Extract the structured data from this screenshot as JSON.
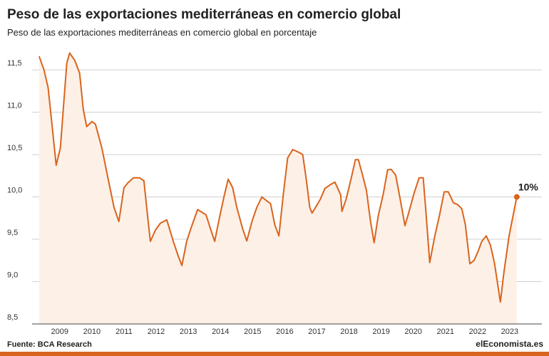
{
  "chart_data": {
    "type": "area",
    "title": "Peso de las exportaciones mediterráneas en comercio global",
    "subtitle": "Peso de las exportaciones mediterráneas en comercio global en porcentaje",
    "source": "Fuente: BCA Research",
    "logo": "elEconomista.es",
    "color": "#d9641e",
    "fill_color": "#fdf0e6",
    "grid": true,
    "x": [
      2008.36,
      2008.51,
      2008.64,
      2008.73,
      2008.89,
      2009.02,
      2009.13,
      2009.22,
      2009.31,
      2009.47,
      2009.62,
      2009.73,
      2009.84,
      2010.0,
      2010.11,
      2010.31,
      2010.53,
      2010.69,
      2010.84,
      2011.0,
      2011.13,
      2011.29,
      2011.49,
      2011.62,
      2011.73,
      2011.82,
      2011.98,
      2012.13,
      2012.33,
      2012.53,
      2012.67,
      2012.8,
      2012.95,
      2013.09,
      2013.29,
      2013.55,
      2013.69,
      2013.82,
      2013.98,
      2014.11,
      2014.24,
      2014.38,
      2014.51,
      2014.69,
      2014.82,
      2014.98,
      2015.13,
      2015.29,
      2015.42,
      2015.56,
      2015.69,
      2015.82,
      2015.96,
      2016.09,
      2016.25,
      2016.42,
      2016.56,
      2016.67,
      2016.78,
      2016.85,
      2016.98,
      2017.11,
      2017.25,
      2017.4,
      2017.56,
      2017.74,
      2017.78,
      2017.91,
      2018.07,
      2018.2,
      2018.29,
      2018.4,
      2018.54,
      2018.67,
      2018.78,
      2018.91,
      2019.07,
      2019.2,
      2019.31,
      2019.45,
      2019.58,
      2019.74,
      2019.87,
      2020.02,
      2020.18,
      2020.31,
      2020.4,
      2020.51,
      2020.67,
      2020.82,
      2020.96,
      2021.09,
      2021.25,
      2021.38,
      2021.51,
      2021.62,
      2021.76,
      2021.89,
      2022.02,
      2022.13,
      2022.27,
      2022.4,
      2022.53,
      2022.71,
      2022.82,
      2022.98,
      2023.22
    ],
    "values": [
      11.66,
      11.5,
      11.29,
      10.96,
      10.375,
      10.58,
      11.13,
      11.58,
      11.7,
      11.61,
      11.46,
      11.04,
      10.83,
      10.89,
      10.86,
      10.58,
      10.17,
      9.875,
      9.71,
      10.11,
      10.17,
      10.225,
      10.225,
      10.19,
      9.79,
      9.475,
      9.61,
      9.69,
      9.73,
      9.48,
      9.32,
      9.19,
      9.475,
      9.64,
      9.85,
      9.79,
      9.625,
      9.475,
      9.775,
      10.0,
      10.21,
      10.11,
      9.875,
      9.625,
      9.48,
      9.71,
      9.875,
      10.0,
      9.96,
      9.92,
      9.67,
      9.54,
      10.04,
      10.46,
      10.56,
      10.53,
      10.5,
      10.21,
      9.875,
      9.81,
      9.89,
      9.975,
      10.1,
      10.14,
      10.175,
      10.025,
      9.83,
      9.975,
      10.225,
      10.44,
      10.44,
      10.29,
      10.08,
      9.71,
      9.46,
      9.775,
      10.04,
      10.32,
      10.325,
      10.26,
      10.0,
      9.66,
      9.83,
      10.04,
      10.225,
      10.225,
      9.79,
      9.225,
      9.54,
      9.79,
      10.06,
      10.06,
      9.93,
      9.91,
      9.86,
      9.67,
      9.21,
      9.25,
      9.36,
      9.475,
      9.54,
      9.43,
      9.21,
      8.76,
      9.11,
      9.54,
      10.0
    ],
    "value_labels": [
      null,
      null,
      null,
      null,
      null,
      null,
      null,
      null,
      null,
      null,
      null,
      null,
      null,
      null,
      null,
      null,
      null,
      null,
      null,
      null,
      null,
      null,
      null,
      null,
      null,
      null,
      null,
      null,
      null,
      null,
      null,
      null,
      null,
      null,
      null,
      null,
      null,
      null,
      null,
      null,
      null,
      null,
      null,
      null,
      null,
      null,
      null,
      null,
      null,
      null,
      null,
      null,
      null,
      null,
      null,
      null,
      null,
      null,
      null,
      null,
      null,
      null,
      null,
      null,
      null,
      null,
      null,
      null,
      null,
      null,
      null,
      null,
      null,
      null,
      null,
      null,
      null,
      null,
      null,
      null,
      null,
      null,
      null,
      null,
      null,
      null,
      null,
      null,
      null,
      null,
      null,
      null,
      null,
      null,
      null,
      null,
      null,
      null,
      null,
      null,
      null,
      null,
      null,
      null,
      null,
      null,
      "10%"
    ],
    "xlim": [
      2008.14,
      2024.0
    ],
    "xticks": [
      2009,
      2010,
      2011,
      2012,
      2013,
      2014,
      2015,
      2016,
      2017,
      2018,
      2019,
      2020,
      2021,
      2022,
      2023
    ],
    "ylim": [
      8.5,
      11.72
    ],
    "yticks": [
      {
        "value": 11.5,
        "label": "11,5"
      },
      {
        "value": 11.0,
        "label": "11,0"
      },
      {
        "value": 10.5,
        "label": "10,5"
      },
      {
        "value": 10.0,
        "label": "10,0"
      },
      {
        "value": 9.5,
        "label": "9,5"
      },
      {
        "value": 9.0,
        "label": "9,0"
      },
      {
        "value": 8.5,
        "label": "8,5"
      }
    ]
  }
}
